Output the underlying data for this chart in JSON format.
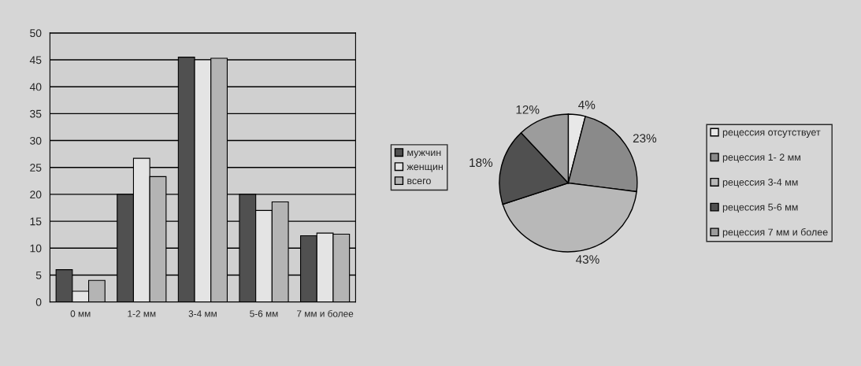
{
  "chart_data": [
    {
      "type": "bar",
      "categories": [
        "0 мм",
        "1-2 мм",
        "3-4 мм",
        "5-6 мм",
        "7 мм и более"
      ],
      "series": [
        {
          "name": "мужчин",
          "color": "#505050",
          "values": [
            6,
            20,
            45.5,
            20,
            12.3
          ]
        },
        {
          "name": "женщин",
          "color": "#e4e4e4",
          "values": [
            2,
            26.7,
            45,
            17,
            12.8
          ]
        },
        {
          "name": "всего",
          "color": "#b4b4b4",
          "values": [
            4,
            23.3,
            45.3,
            18.6,
            12.6
          ]
        }
      ],
      "ylim": [
        0,
        50
      ],
      "yticks": [
        0,
        5,
        10,
        15,
        20,
        25,
        30,
        35,
        40,
        45,
        50
      ],
      "grid": "y",
      "legend": "right"
    },
    {
      "type": "pie",
      "categories": [
        "рецессия отсутствует",
        "рецессия 1- 2 мм",
        "рецессия 3-4 мм",
        "рецессия 5-6 мм",
        "рецессия 7 мм и более"
      ],
      "values": [
        4,
        23,
        43,
        18,
        12
      ],
      "colors": [
        "#e8e8e8",
        "#8a8a8a",
        "#b8b8b8",
        "#505050",
        "#9c9c9c"
      ],
      "value_labels": [
        "4%",
        "23%",
        "43%",
        "18%",
        "12%"
      ],
      "legend": "right"
    }
  ]
}
